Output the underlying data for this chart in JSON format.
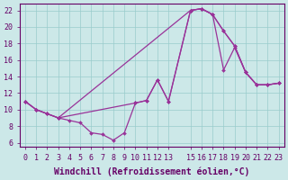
{
  "xlabel": "Windchill (Refroidissement éolien,°C)",
  "bg_color": "#cce8e8",
  "line_color": "#993399",
  "marker_color": "#993399",
  "xlim": [
    -0.5,
    23.5
  ],
  "ylim": [
    5.5,
    22.8
  ],
  "xticks": [
    0,
    1,
    2,
    3,
    4,
    5,
    6,
    7,
    8,
    9,
    10,
    11,
    12,
    13,
    15,
    16,
    17,
    18,
    19,
    20,
    21,
    22,
    23
  ],
  "yticks": [
    6,
    8,
    10,
    12,
    14,
    16,
    18,
    20,
    22
  ],
  "line1_x": [
    0,
    1,
    2,
    3,
    4,
    5,
    6,
    7,
    8,
    9,
    10,
    11,
    12,
    13,
    15,
    16,
    17,
    18,
    19,
    20,
    21,
    22,
    23
  ],
  "line1_y": [
    11.0,
    10.0,
    9.5,
    9.0,
    8.7,
    8.4,
    7.2,
    7.0,
    6.3,
    7.2,
    10.8,
    11.1,
    13.6,
    11.0,
    22.0,
    22.2,
    21.5,
    14.8,
    17.5,
    14.5,
    13.0,
    13.0,
    13.2
  ],
  "line2_x": [
    0,
    1,
    2,
    3,
    10,
    11,
    12,
    13,
    15,
    16,
    17,
    18,
    19,
    20,
    21,
    22,
    23
  ],
  "line2_y": [
    11.0,
    10.0,
    9.5,
    9.0,
    10.8,
    11.1,
    13.6,
    11.0,
    22.0,
    22.2,
    21.5,
    19.5,
    17.7,
    14.5,
    13.0,
    13.0,
    13.2
  ],
  "line3_x": [
    0,
    1,
    2,
    3,
    15,
    16,
    17,
    18,
    19,
    20,
    21,
    22,
    23
  ],
  "line3_y": [
    11.0,
    10.0,
    9.5,
    9.0,
    22.0,
    22.2,
    21.5,
    19.5,
    17.7,
    14.5,
    13.0,
    13.0,
    13.2
  ],
  "grid_color": "#99cccc",
  "axis_color": "#660066",
  "tick_color": "#660066",
  "label_fontsize": 7,
  "tick_fontsize": 6
}
